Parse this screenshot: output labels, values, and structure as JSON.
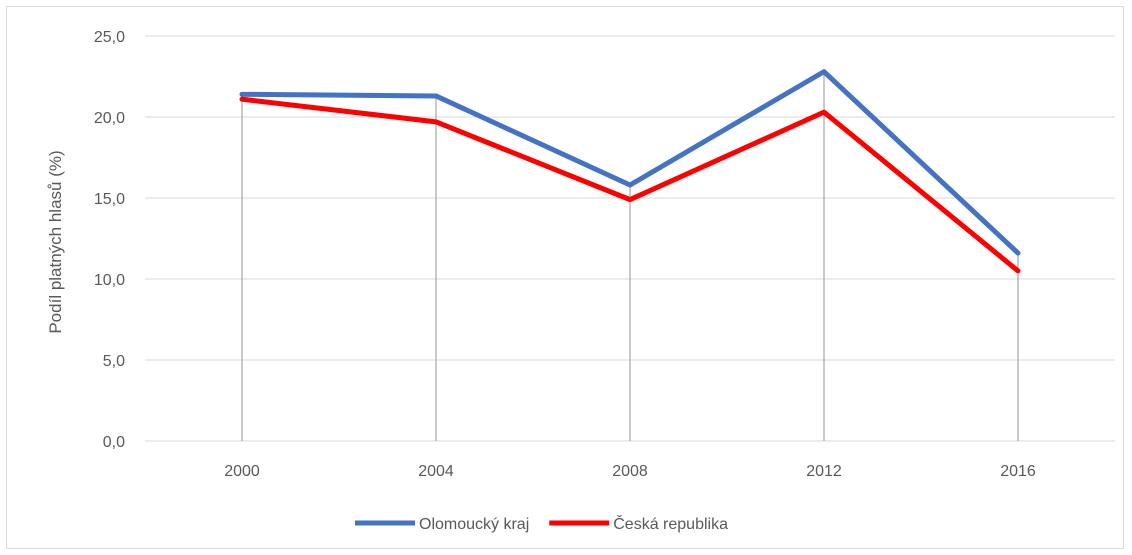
{
  "chart_data": {
    "type": "line",
    "title": "",
    "xlabel": "",
    "ylabel": "Podíl platných hlasů (%)",
    "x": [
      "2000",
      "2004",
      "2008",
      "2012",
      "2016"
    ],
    "ylim": [
      0,
      25
    ],
    "y_ticks": [
      "0,0",
      "5,0",
      "10,0",
      "15,0",
      "20,0",
      "25,0"
    ],
    "grid": true,
    "legend_position": "bottom",
    "series": [
      {
        "name": "Olomoucký kraj",
        "color": "#4472c4",
        "values": [
          21.4,
          21.3,
          15.8,
          22.8,
          11.6
        ]
      },
      {
        "name": "Česká republika",
        "color": "#ff0000",
        "values": [
          21.1,
          19.7,
          14.9,
          20.3,
          10.5
        ]
      }
    ]
  }
}
